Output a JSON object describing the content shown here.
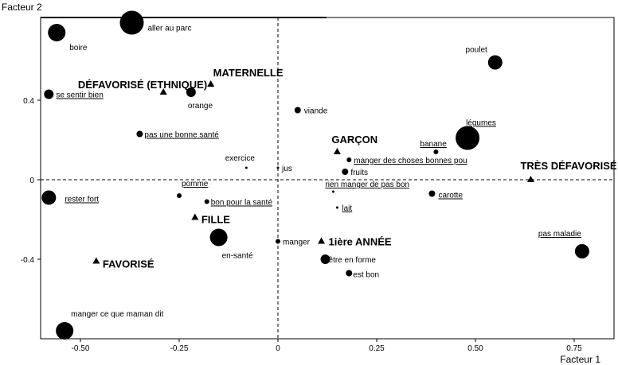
{
  "chart_data": {
    "type": "scatter",
    "xlabel": "Facteur 1",
    "ylabel": "Facteur 2",
    "xlim": [
      -0.6,
      0.76
    ],
    "ylim": [
      -0.78,
      0.82
    ],
    "x_ticks": [
      -0.5,
      -0.25,
      0,
      0.25,
      0.5,
      0.75
    ],
    "y_ticks": [
      0.4,
      0,
      -0.4
    ],
    "x_tick_labels": [
      "-0.50",
      "-0.25",
      "0",
      "0.25",
      "0.50",
      "0.75"
    ],
    "y_tick_labels": [
      "0.4",
      "0",
      "-0.4"
    ],
    "zero_lines": "dashed",
    "words": [
      {
        "label": "aller au parc",
        "x": -0.37,
        "y": 0.79,
        "size": "xl",
        "underline": false
      },
      {
        "label": "boire",
        "x": -0.56,
        "y": 0.74,
        "size": "l",
        "underline": false
      },
      {
        "label": "poulet",
        "x": 0.55,
        "y": 0.59,
        "size": "m",
        "underline": false
      },
      {
        "label": "se sentir bien",
        "x": -0.58,
        "y": 0.43,
        "size": "s",
        "underline": true
      },
      {
        "label": "orange",
        "x": -0.22,
        "y": 0.44,
        "size": "s",
        "underline": false
      },
      {
        "label": "viande",
        "x": 0.05,
        "y": 0.35,
        "size": "xs",
        "underline": false
      },
      {
        "label": "pas une bonne santé",
        "x": -0.35,
        "y": 0.23,
        "size": "xs",
        "underline": true
      },
      {
        "label": "légumes",
        "x": 0.48,
        "y": 0.21,
        "size": "xl",
        "underline": true
      },
      {
        "label": "banane",
        "x": 0.4,
        "y": 0.14,
        "size": "xxs",
        "underline": true
      },
      {
        "label": "manger des choses bonnes pou",
        "x": 0.18,
        "y": 0.1,
        "size": "xxs",
        "underline": true
      },
      {
        "label": "exercice",
        "x": -0.08,
        "y": 0.06,
        "size": "xxxs",
        "underline": false
      },
      {
        "label": "jus",
        "x": 0.0,
        "y": 0.06,
        "size": "xxxs",
        "underline": false
      },
      {
        "label": "fruits",
        "x": 0.17,
        "y": 0.04,
        "size": "xs",
        "underline": false
      },
      {
        "label": "rien manger de pas bon",
        "x": 0.14,
        "y": -0.06,
        "size": "xxxs",
        "underline": true
      },
      {
        "label": "carotte",
        "x": 0.39,
        "y": -0.07,
        "size": "xs",
        "underline": true
      },
      {
        "label": "rester fort",
        "x": -0.58,
        "y": -0.09,
        "size": "m",
        "underline": true
      },
      {
        "label": "pomme",
        "x": -0.25,
        "y": -0.08,
        "size": "xxs",
        "underline": true
      },
      {
        "label": "bon pour la santé",
        "x": -0.18,
        "y": -0.11,
        "size": "xxs",
        "underline": true
      },
      {
        "label": "lait",
        "x": 0.15,
        "y": -0.14,
        "size": "xxxs",
        "underline": true
      },
      {
        "label": "pas maladie",
        "x": 0.77,
        "y": -0.36,
        "size": "m",
        "underline": true
      },
      {
        "label": "en-santé",
        "x": -0.15,
        "y": -0.29,
        "size": "l",
        "underline": false
      },
      {
        "label": "manger",
        "x": 0.0,
        "y": -0.31,
        "size": "xxs",
        "underline": false
      },
      {
        "label": "être en forme",
        "x": 0.12,
        "y": -0.4,
        "size": "s",
        "underline": false
      },
      {
        "label": "est bon",
        "x": 0.18,
        "y": -0.47,
        "size": "xs",
        "underline": false
      },
      {
        "label": "manger ce que maman dit",
        "x": -0.54,
        "y": -0.76,
        "size": "l",
        "underline": false
      }
    ],
    "groups": [
      {
        "label": "DÉFAVORISÉ (ETHNIQUE)",
        "x": -0.29,
        "y": 0.44
      },
      {
        "label": "MATERNELLE",
        "x": -0.17,
        "y": 0.48
      },
      {
        "label": "GARÇON",
        "x": 0.15,
        "y": 0.14
      },
      {
        "label": "TRÈS DÉFAVORISÉ",
        "x": 0.64,
        "y": 0.0
      },
      {
        "label": "FILLE",
        "x": -0.21,
        "y": -0.19
      },
      {
        "label": "FAVORISÉ",
        "x": -0.46,
        "y": -0.41
      },
      {
        "label": "1ière ANNÉE",
        "x": 0.11,
        "y": -0.31
      }
    ]
  }
}
